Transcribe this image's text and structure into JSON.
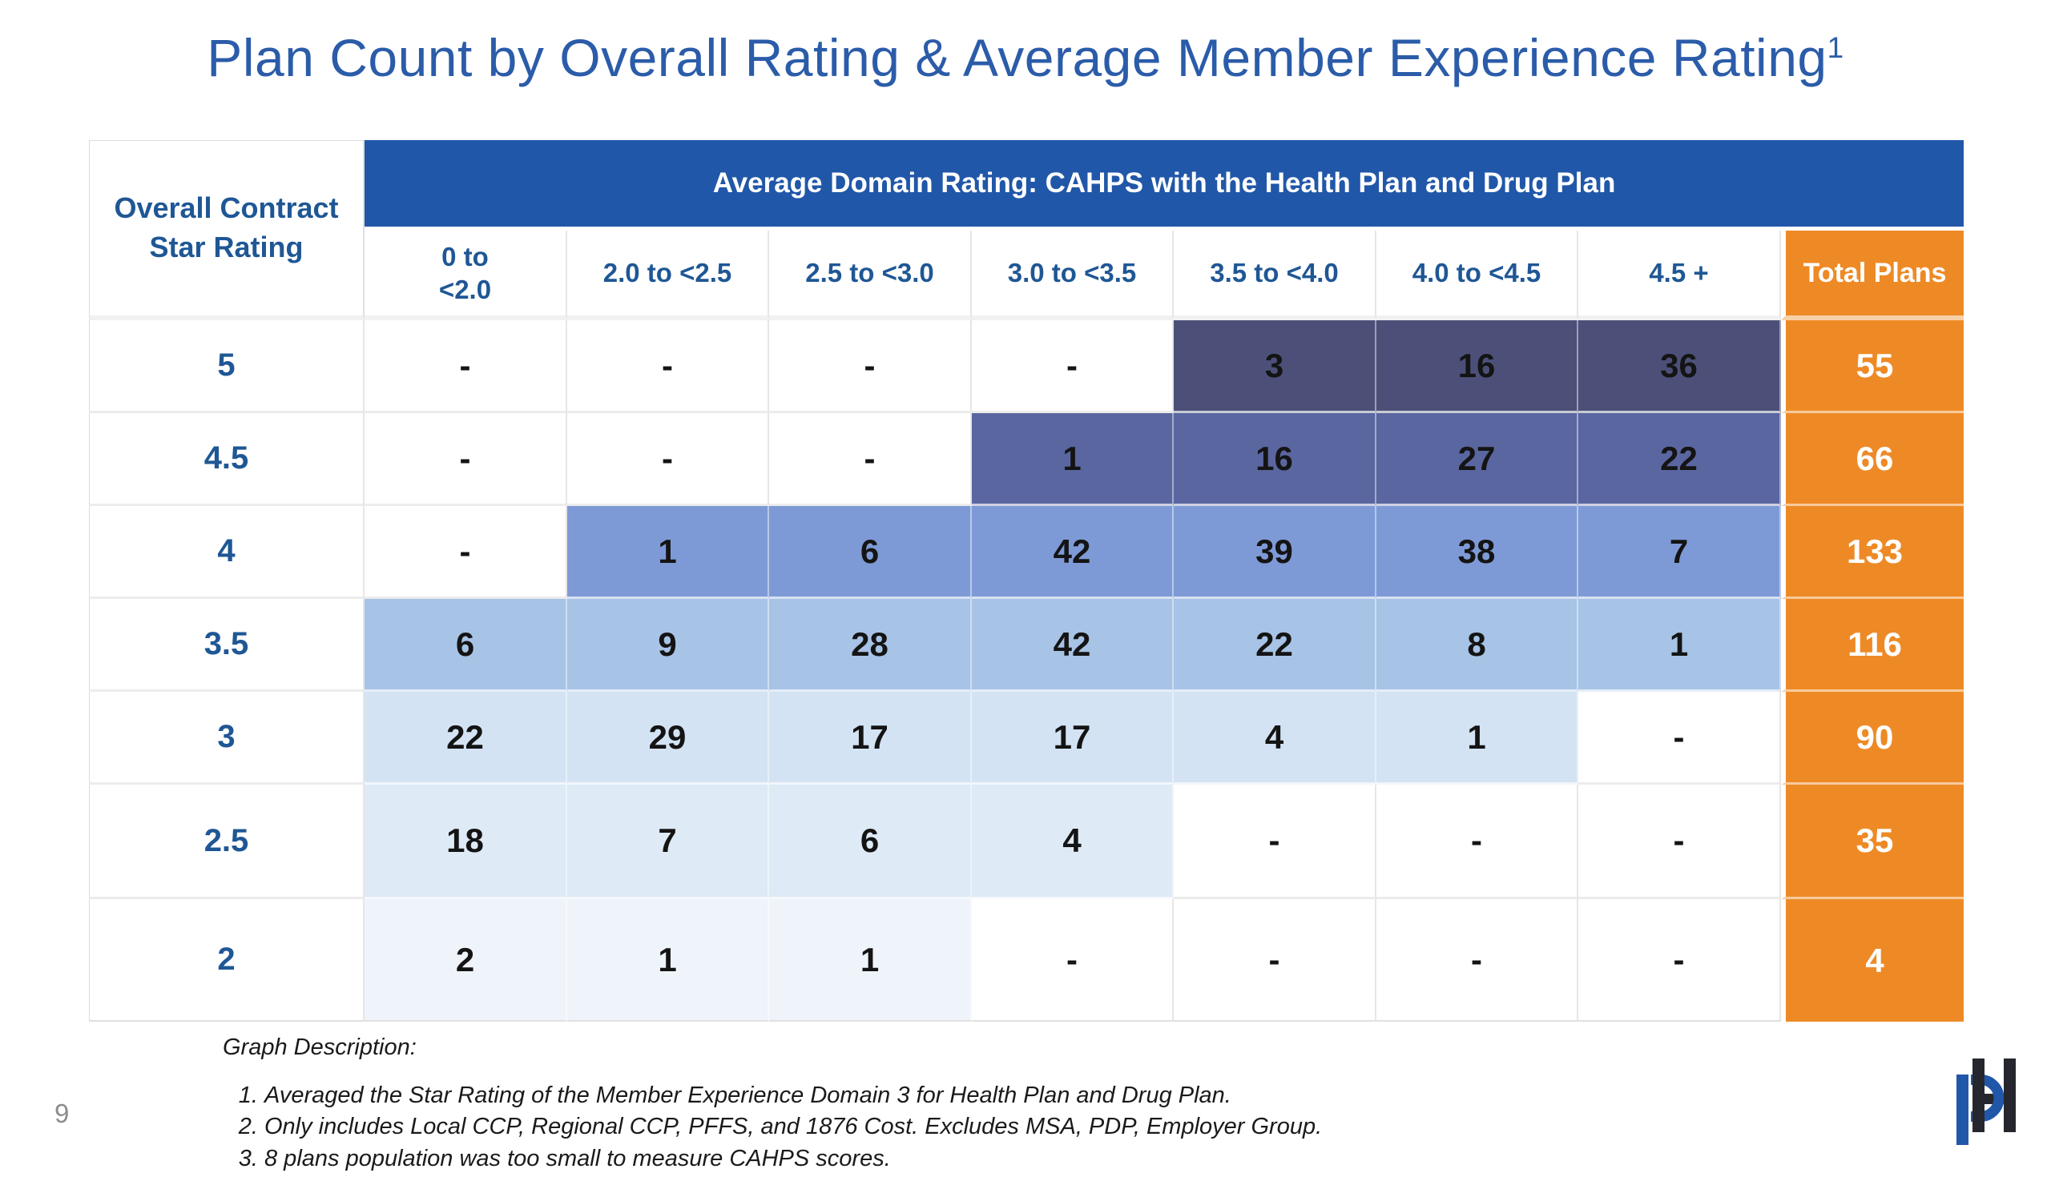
{
  "title": {
    "text": "Plan Count by Overall Rating & Average Member Experience Rating",
    "superscript": "1"
  },
  "table": {
    "corner_header": "Overall Contract Star Rating",
    "banner": "Average Domain Rating: CAHPS with the Health Plan and Drug Plan",
    "columns": [
      "0 to\n<2.0",
      "2.0 to <2.5",
      "2.5 to <3.0",
      "3.0 to <3.5",
      "3.5 to <4.0",
      "4.0 to <4.5",
      "4.5 +"
    ],
    "total_header": "Total Plans",
    "fills": [
      [
        null,
        null,
        null,
        null,
        "dark",
        "dark",
        "dark"
      ],
      [
        null,
        null,
        null,
        "slate",
        "slate",
        "slate",
        "slate"
      ],
      [
        null,
        "mid",
        "mid",
        "mid",
        "mid",
        "mid",
        "mid"
      ],
      [
        "lightMid",
        "lightMid",
        "lightMid",
        "lightMid",
        "lightMid",
        "lightMid",
        "lightMid"
      ],
      [
        "light",
        "light",
        "light",
        "light",
        "light",
        "light",
        null
      ],
      [
        "lighter",
        "lighter",
        "lighter",
        "lighter",
        null,
        null,
        null
      ],
      [
        "lightest",
        "lightest",
        "lightest",
        null,
        null,
        null,
        null
      ]
    ]
  },
  "chart_data": {
    "type": "heatmap",
    "title": "Plan Count by Overall Rating & Average Member Experience Rating",
    "title_superscript": "1",
    "columns_axis_label": "Average Domain Rating: CAHPS with the Health Plan and Drug Plan",
    "rows_axis_label": "Overall Contract Star Rating",
    "columns": [
      "0 to <2.0",
      "2.0 to <2.5",
      "2.5 to <3.0",
      "3.0 to <3.5",
      "3.5 to <4.0",
      "4.0 to <4.5",
      "4.5 +"
    ],
    "rows": [
      "5",
      "4.5",
      "4",
      "3.5",
      "3",
      "2.5",
      "2"
    ],
    "values": [
      [
        null,
        null,
        null,
        null,
        3,
        16,
        36
      ],
      [
        null,
        null,
        null,
        1,
        16,
        27,
        22
      ],
      [
        null,
        1,
        6,
        42,
        39,
        38,
        7
      ],
      [
        6,
        9,
        28,
        42,
        22,
        8,
        1
      ],
      [
        22,
        29,
        17,
        17,
        4,
        1,
        null
      ],
      [
        18,
        7,
        6,
        4,
        null,
        null,
        null
      ],
      [
        2,
        1,
        1,
        null,
        null,
        null,
        null
      ]
    ],
    "totals": [
      55,
      66,
      133,
      116,
      90,
      35,
      4
    ],
    "total_label": "Total Plans",
    "empty_marker": "-"
  },
  "colors": {
    "banner_blue": "#2157A8",
    "orange": "#EE8A26",
    "title_blue": "#2B5CA9",
    "header_text_blue": "#1F5795",
    "dark": "#4C5078",
    "slate": "#5A66A0",
    "mid": "#7E9AD6",
    "lightMid": "#A7C3E6",
    "light": "#D3E3F3",
    "lighter": "#DEEAF6",
    "lightest": "#EFF4FB",
    "logo_dark": "#26272E",
    "logo_blue": "#2157A8"
  },
  "footer": {
    "heading": "Graph Description:",
    "notes": [
      "Averaged the Star Rating of the Member Experience Domain 3 for Health Plan and Drug Plan.",
      "Only includes Local CCP, Regional CCP, PFFS, and 1876 Cost. Excludes MSA, PDP, Employer Group.",
      "8 plans population was too small to measure CAHPS scores."
    ]
  },
  "page_number": "9",
  "logo": {
    "monogram": "PH"
  }
}
